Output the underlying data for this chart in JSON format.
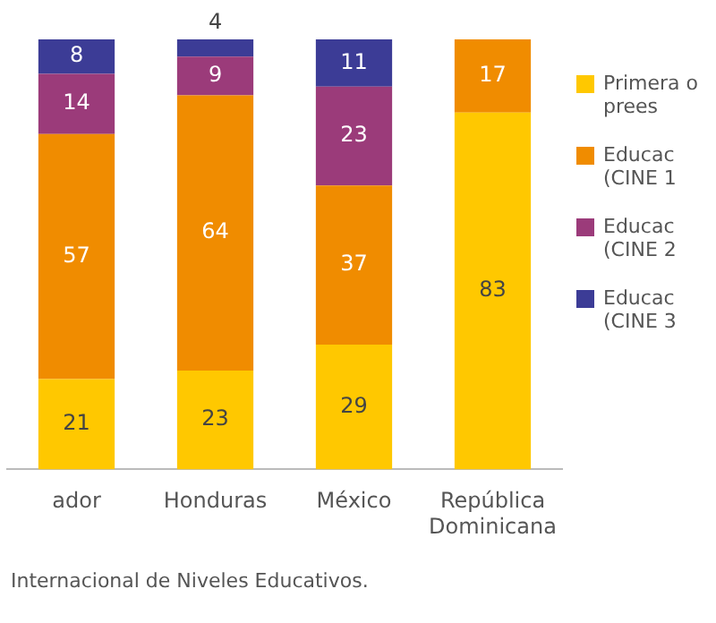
{
  "chart_data": {
    "type": "bar",
    "stacked": true,
    "data_labels": true,
    "legend": "right",
    "categories": [
      "ador",
      "Honduras",
      "México",
      "República Dominicana"
    ],
    "series": [
      {
        "name": "Primera o prees",
        "color": "#ffc800",
        "values": [
          21,
          23,
          29,
          83
        ]
      },
      {
        "name": "Educac (CINE 1",
        "color": "#f08c00",
        "values": [
          57,
          64,
          37,
          17
        ]
      },
      {
        "name": "Educac (CINE 2",
        "color": "#9b3b7a",
        "values": [
          14,
          9,
          23,
          null
        ]
      },
      {
        "name": "Educac (CINE 3",
        "color": "#3c3c96",
        "values": [
          8,
          4,
          11,
          null
        ]
      }
    ],
    "annotations": [
      "Internacional de Niveles Educativos."
    ]
  }
}
